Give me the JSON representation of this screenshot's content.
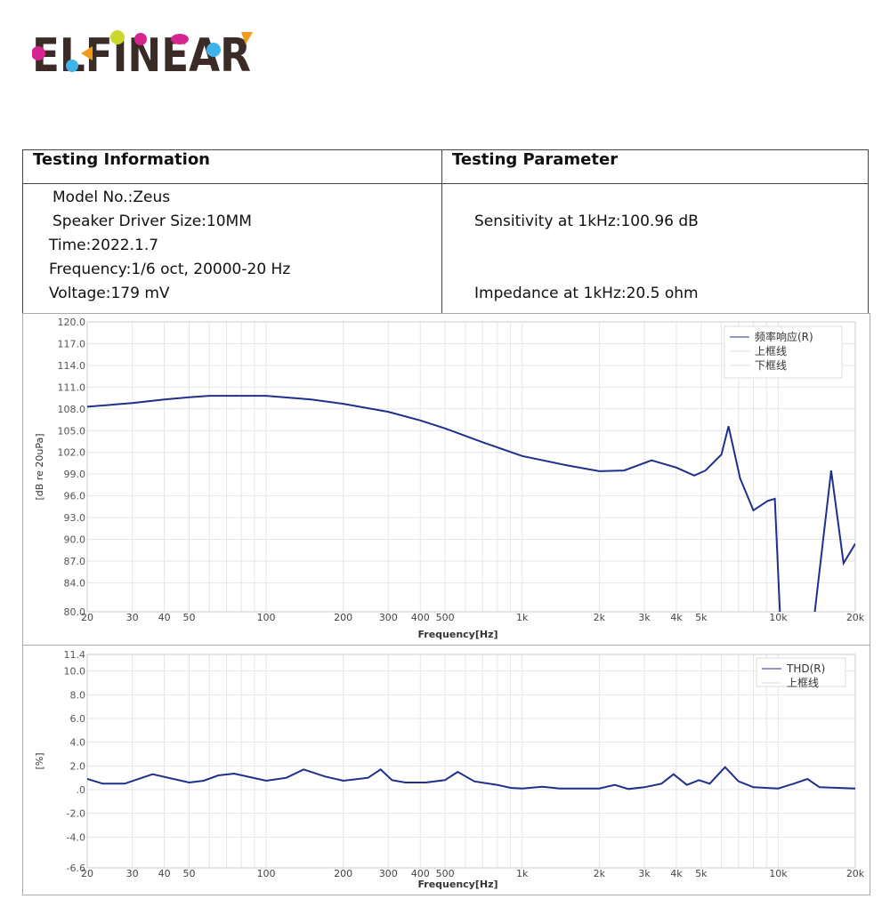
{
  "logo": {
    "text": "ELFINEAR",
    "colors": {
      "base": "#3b2b27",
      "magenta": "#d6258f",
      "cyan": "#3fb4e8",
      "lime": "#c9d82a",
      "orange": "#f39a1b"
    }
  },
  "table": {
    "headers": [
      "Testing Information",
      "Testing Parameter"
    ],
    "info": [
      "Model No.:Zeus",
      "Speaker Driver Size:10MM",
      "Time:2022.1.7",
      "Frequency:1/6 oct, 20000-20 Hz",
      "Voltage:179 mV"
    ],
    "params": [
      "Sensitivity at 1kHz:100.96 dB",
      "Impedance at 1kHz:20.5 ohm"
    ]
  },
  "chart_data": [
    {
      "type": "line",
      "title": "",
      "xlabel": "Frequency[Hz]",
      "ylabel": "[dB re 20uPa]",
      "xscale": "log",
      "xlim": [
        20,
        20000
      ],
      "ylim": [
        80,
        120
      ],
      "xticks": [
        20,
        30,
        40,
        50,
        100,
        200,
        300,
        400,
        500,
        1000,
        2000,
        3000,
        4000,
        5000,
        10000,
        20000
      ],
      "xtick_labels": [
        "20",
        "30",
        "40",
        "50",
        "100",
        "200",
        "300",
        "400",
        "500",
        "1k",
        "2k",
        "3k",
        "4k",
        "5k",
        "10k",
        "20k"
      ],
      "yticks": [
        120,
        117,
        114,
        111,
        108,
        105,
        102,
        99,
        96,
        93,
        90,
        87,
        84,
        80
      ],
      "ytick_labels": [
        "120.0",
        "117.0",
        "114.0",
        "111.0",
        "108.0",
        "105.0",
        "102.0",
        "99.0",
        "96.0",
        "93.0",
        "90.0",
        "87.0",
        "84.0",
        "80.0"
      ],
      "legend": {
        "placement": "top-right",
        "entries": [
          "频率响应(R)",
          "上框线",
          "下框线"
        ]
      },
      "grid": true,
      "series": [
        {
          "name": "频率响应(R)",
          "color": "#1f2f8c",
          "x": [
            20,
            30,
            40,
            50,
            60,
            100,
            150,
            200,
            300,
            400,
            500,
            700,
            1000,
            1500,
            2000,
            2500,
            3200,
            4000,
            4700,
            5200,
            6000,
            6400,
            7100,
            8000,
            9100,
            9700,
            10300,
            12000,
            13900,
            16100,
            18000,
            20000
          ],
          "y": [
            108.3,
            108.8,
            109.3,
            109.6,
            109.8,
            109.8,
            109.3,
            108.7,
            107.6,
            106.4,
            105.3,
            103.4,
            101.5,
            100.2,
            99.4,
            99.5,
            100.9,
            99.9,
            98.8,
            99.5,
            101.7,
            105.6,
            98.4,
            94.0,
            95.3,
            95.6,
            75,
            70,
            80,
            99.5,
            86.7,
            89.4
          ]
        }
      ]
    },
    {
      "type": "line",
      "title": "",
      "xlabel": "Frequency[Hz]",
      "ylabel": "[%]",
      "xscale": "log",
      "xlim": [
        20,
        20000
      ],
      "ylim": [
        -6.6,
        11.4
      ],
      "xticks": [
        20,
        30,
        40,
        50,
        100,
        200,
        300,
        400,
        500,
        1000,
        2000,
        3000,
        4000,
        5000,
        10000,
        20000
      ],
      "xtick_labels": [
        "20",
        "30",
        "40",
        "50",
        "100",
        "200",
        "300",
        "400",
        "500",
        "1k",
        "2k",
        "3k",
        "4k",
        "5k",
        "10k",
        "20k"
      ],
      "yticks": [
        11.4,
        10,
        8,
        6,
        4,
        2,
        0,
        -2,
        -4,
        -6.6
      ],
      "ytick_labels": [
        "11.4",
        "10.0",
        "8.0",
        "6.0",
        "4.0",
        "2.0",
        ".0",
        "-2.0",
        "-4.0",
        "-6.6"
      ],
      "legend": {
        "placement": "top-right",
        "entries": [
          "THD(R)",
          "上框线"
        ]
      },
      "grid": true,
      "series": [
        {
          "name": "THD(R)",
          "color": "#1f2f8c",
          "x": [
            20,
            23,
            28,
            36,
            50,
            57,
            65,
            75,
            100,
            120,
            140,
            170,
            200,
            250,
            280,
            310,
            350,
            420,
            500,
            560,
            650,
            800,
            900,
            1000,
            1200,
            1400,
            2000,
            2300,
            2600,
            3000,
            3500,
            3900,
            4400,
            4900,
            5400,
            6200,
            7000,
            8000,
            10000,
            11500,
            13000,
            14500,
            20000
          ],
          "y": [
            0.9,
            0.5,
            0.5,
            1.3,
            0.6,
            0.75,
            1.2,
            1.35,
            0.75,
            1.0,
            1.7,
            1.1,
            0.75,
            1.0,
            1.7,
            0.8,
            0.6,
            0.6,
            0.8,
            1.5,
            0.7,
            0.4,
            0.15,
            0.1,
            0.25,
            0.1,
            0.1,
            0.4,
            0.05,
            0.2,
            0.5,
            1.3,
            0.4,
            0.8,
            0.5,
            1.9,
            0.7,
            0.2,
            0.1,
            0.5,
            0.9,
            0.2,
            0.1
          ]
        }
      ]
    }
  ]
}
